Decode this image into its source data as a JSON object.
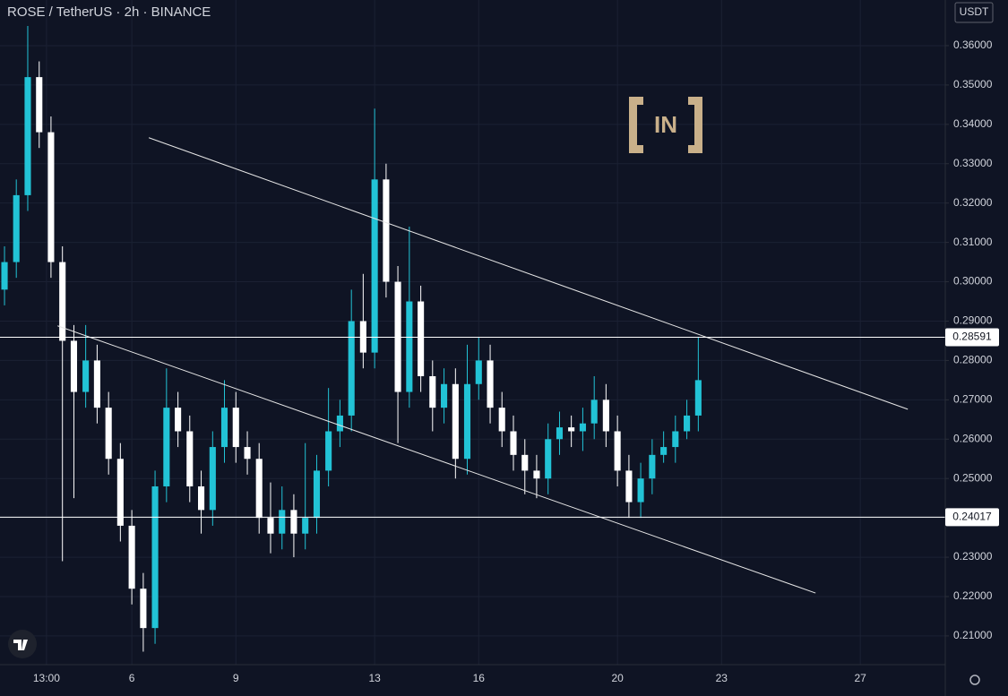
{
  "chart_data": {
    "type": "candlestick",
    "title": "ROSE / TetherUS · 2h · BINANCE",
    "currency": "USDT",
    "watermark": "IN",
    "up_color": "#22c3d6",
    "down_color": "#ffffff",
    "grid": true,
    "x": [
      2.33,
      2.67,
      3.0,
      3.33,
      3.67,
      4.0,
      4.33,
      4.67,
      5.0,
      5.33,
      5.67,
      6.0,
      6.33,
      6.67,
      7.0,
      7.33,
      7.67,
      8.0,
      8.33,
      8.67,
      9.0,
      9.33,
      9.67,
      10.0,
      10.33,
      10.67,
      11.0,
      11.33,
      11.67,
      12.0,
      12.33,
      12.67,
      13.0,
      13.33,
      13.67,
      14.0,
      14.33,
      14.67,
      15.0,
      15.33,
      15.67,
      16.0,
      16.33,
      16.67,
      17.0,
      17.33,
      17.67,
      18.0,
      18.33,
      18.67,
      19.0,
      19.33,
      19.67,
      20.0,
      20.33,
      20.67,
      21.0,
      21.33,
      21.67,
      22.0,
      22.33
    ],
    "open": [
      0.298,
      0.305,
      0.322,
      0.352,
      0.338,
      0.305,
      0.285,
      0.272,
      0.28,
      0.268,
      0.255,
      0.238,
      0.222,
      0.212,
      0.248,
      0.268,
      0.262,
      0.248,
      0.242,
      0.258,
      0.268,
      0.258,
      0.255,
      0.24,
      0.236,
      0.242,
      0.236,
      0.24,
      0.252,
      0.262,
      0.266,
      0.29,
      0.282,
      0.326,
      0.3,
      0.272,
      0.295,
      0.276,
      0.268,
      0.274,
      0.255,
      0.274,
      0.28,
      0.268,
      0.262,
      0.256,
      0.252,
      0.25,
      0.26,
      0.263,
      0.262,
      0.264,
      0.27,
      0.262,
      0.252,
      0.244,
      0.25,
      0.256,
      0.258,
      0.262,
      0.266
    ],
    "high": [
      0.309,
      0.326,
      0.365,
      0.356,
      0.342,
      0.309,
      0.289,
      0.289,
      0.284,
      0.272,
      0.259,
      0.242,
      0.226,
      0.252,
      0.278,
      0.272,
      0.266,
      0.252,
      0.262,
      0.275,
      0.272,
      0.262,
      0.259,
      0.249,
      0.248,
      0.246,
      0.259,
      0.256,
      0.273,
      0.27,
      0.298,
      0.302,
      0.344,
      0.33,
      0.304,
      0.314,
      0.299,
      0.28,
      0.278,
      0.278,
      0.284,
      0.286,
      0.284,
      0.272,
      0.266,
      0.26,
      0.256,
      0.264,
      0.267,
      0.266,
      0.268,
      0.276,
      0.274,
      0.266,
      0.256,
      0.254,
      0.26,
      0.262,
      0.266,
      0.27,
      0.286
    ],
    "low": [
      0.294,
      0.301,
      0.318,
      0.334,
      0.301,
      0.229,
      0.245,
      0.268,
      0.264,
      0.251,
      0.234,
      0.218,
      0.206,
      0.208,
      0.244,
      0.258,
      0.244,
      0.236,
      0.238,
      0.254,
      0.254,
      0.251,
      0.236,
      0.231,
      0.232,
      0.23,
      0.232,
      0.236,
      0.248,
      0.258,
      0.262,
      0.278,
      0.278,
      0.296,
      0.259,
      0.268,
      0.272,
      0.262,
      0.264,
      0.25,
      0.251,
      0.27,
      0.264,
      0.258,
      0.252,
      0.246,
      0.245,
      0.246,
      0.256,
      0.258,
      0.257,
      0.26,
      0.258,
      0.248,
      0.24,
      0.24,
      0.246,
      0.254,
      0.254,
      0.26,
      0.262
    ],
    "close": [
      0.305,
      0.322,
      0.352,
      0.338,
      0.305,
      0.285,
      0.272,
      0.28,
      0.268,
      0.255,
      0.238,
      0.222,
      0.212,
      0.248,
      0.268,
      0.262,
      0.248,
      0.242,
      0.258,
      0.268,
      0.258,
      0.255,
      0.24,
      0.236,
      0.242,
      0.236,
      0.24,
      0.252,
      0.262,
      0.266,
      0.29,
      0.282,
      0.326,
      0.3,
      0.272,
      0.295,
      0.276,
      0.268,
      0.274,
      0.255,
      0.274,
      0.28,
      0.268,
      0.262,
      0.256,
      0.252,
      0.25,
      0.26,
      0.263,
      0.262,
      0.264,
      0.27,
      0.262,
      0.252,
      0.244,
      0.25,
      0.256,
      0.258,
      0.262,
      0.266,
      0.275
    ],
    "levels": [
      0.28591,
      0.24017
    ],
    "trendlines": [
      {
        "x": [
          6.49,
          28.37
        ],
        "y": [
          0.3366,
          0.2676
        ]
      },
      {
        "x": [
          3.86,
          25.71
        ],
        "y": [
          0.2888,
          0.2209
        ]
      }
    ],
    "xlim": [
      2.2,
      29.45
    ],
    "ylim": [
      0.2027,
      0.3716
    ],
    "xticks": [
      {
        "value": 3.54,
        "label": "13:00"
      },
      6,
      9,
      13,
      16,
      20,
      23,
      27
    ],
    "yticks": [
      {
        "value": 0.21,
        "label": "0.21000"
      },
      {
        "value": 0.22,
        "label": "0.22000"
      },
      {
        "value": 0.23,
        "label": "0.23000"
      },
      {
        "value": 0.24,
        "label": "0.24000"
      },
      {
        "value": 0.25,
        "label": "0.25000"
      },
      {
        "value": 0.26,
        "label": "0.26000"
      },
      {
        "value": 0.27,
        "label": "0.27000"
      },
      {
        "value": 0.28,
        "label": "0.28000"
      },
      {
        "value": 0.29,
        "label": "0.29000"
      },
      {
        "value": 0.3,
        "label": "0.30000"
      },
      {
        "value": 0.31,
        "label": "0.31000"
      },
      {
        "value": 0.32,
        "label": "0.32000"
      },
      {
        "value": 0.33,
        "label": "0.33000"
      },
      {
        "value": 0.34,
        "label": "0.34000"
      },
      {
        "value": 0.35,
        "label": "0.35000"
      },
      {
        "value": 0.36,
        "label": "0.36000"
      }
    ]
  }
}
